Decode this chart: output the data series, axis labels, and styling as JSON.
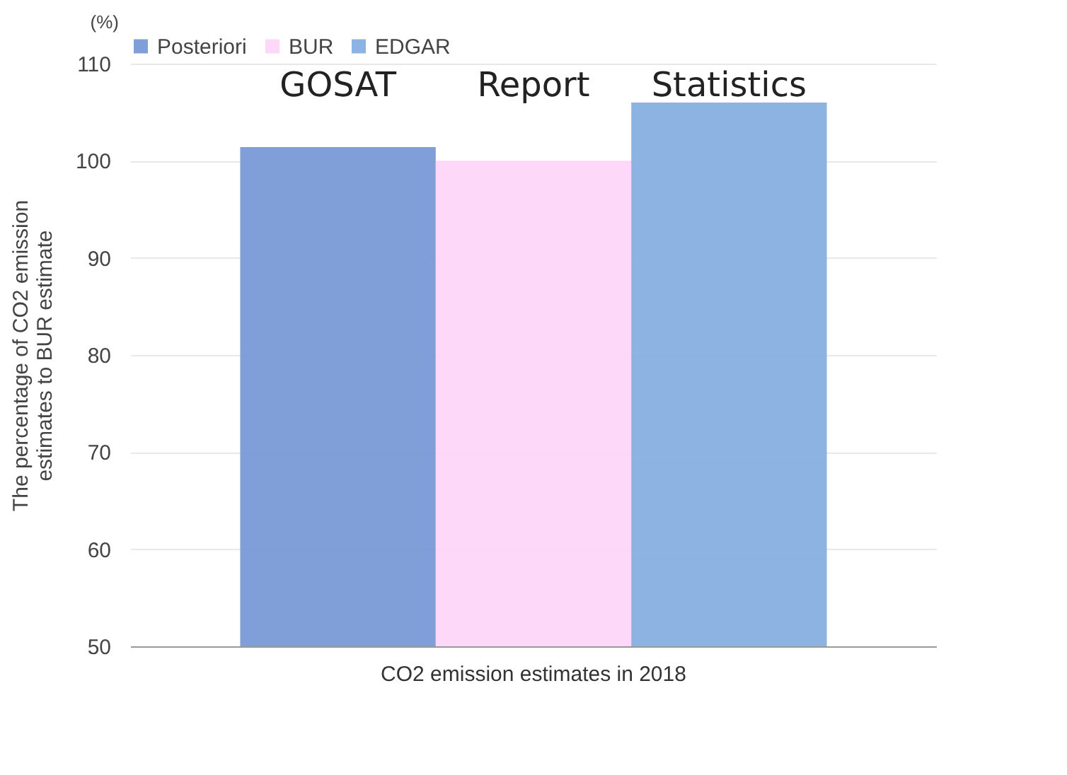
{
  "chart_data": {
    "type": "bar",
    "categories": [
      "CO2 emission estimates in 2018"
    ],
    "series": [
      {
        "name": "Posteriori",
        "color": "#7596d4",
        "values": [
          101.4
        ]
      },
      {
        "name": "BUR",
        "color": "#fdd5f8",
        "values": [
          100
        ]
      },
      {
        "name": "EDGAR",
        "color": "#82addf",
        "values": [
          106
        ]
      }
    ],
    "ylabel": "The percentage of CO2 emission\nestimates to BUR estimate",
    "annotations": [
      "GOSAT",
      "Report",
      "Statistics",
      "(%)"
    ],
    "ylim": [
      50,
      110
    ],
    "yticks": [
      50,
      60,
      70,
      80,
      90,
      100,
      110
    ],
    "grid": "y",
    "legend": "top"
  }
}
